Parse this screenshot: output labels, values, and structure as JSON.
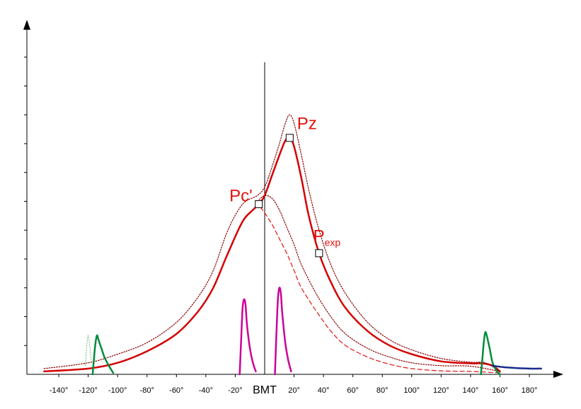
{
  "chart_data": {
    "type": "line",
    "title": "",
    "xlabel": "",
    "ylabel": "",
    "xlim": [
      -150,
      190
    ],
    "ylim": [
      0,
      12
    ],
    "x_ticks": [
      -140,
      -120,
      -100,
      -80,
      -60,
      -40,
      -20,
      20,
      40,
      60,
      80,
      100,
      120,
      140,
      160,
      180
    ],
    "x_tick_labels": [
      "-140°",
      "-120°",
      "-100°",
      "-80°",
      "-60°",
      "-40°",
      "-20°",
      "20°",
      "40°",
      "60°",
      "80°",
      "100°",
      "120°",
      "140°",
      "160°",
      "180°"
    ],
    "y_tick_count": 12,
    "center_label": "BMT",
    "center_x": 0,
    "annotations": [
      {
        "text": "Pz",
        "x": 22,
        "y": 8.5
      },
      {
        "text": "Pc'",
        "x": -24,
        "y": 6.0
      },
      {
        "text": "P",
        "sub": "exp",
        "x": 33,
        "y": 4.6
      }
    ],
    "markers": [
      {
        "name": "Pc'",
        "x": -4,
        "y": 5.9
      },
      {
        "name": "Pz",
        "x": 17,
        "y": 8.2
      },
      {
        "name": "Pexp",
        "x": 37,
        "y": 4.2
      }
    ],
    "series": [
      {
        "color": "#d40000",
        "style": "solid",
        "width": 2.5,
        "points": [
          [
            -150,
            0.1
          ],
          [
            -120,
            0.2
          ],
          [
            -100,
            0.4
          ],
          [
            -80,
            0.8
          ],
          [
            -60,
            1.4
          ],
          [
            -45,
            2.2
          ],
          [
            -35,
            3.0
          ],
          [
            -25,
            4.2
          ],
          [
            -15,
            5.3
          ],
          [
            -8,
            5.7
          ],
          [
            -4,
            5.9
          ],
          [
            0,
            6.2
          ],
          [
            5,
            6.9
          ],
          [
            10,
            7.6
          ],
          [
            14,
            8.1
          ],
          [
            17,
            8.2
          ],
          [
            20,
            7.9
          ],
          [
            25,
            6.8
          ],
          [
            30,
            5.5
          ],
          [
            37,
            4.2
          ],
          [
            45,
            3.2
          ],
          [
            55,
            2.3
          ],
          [
            70,
            1.5
          ],
          [
            85,
            1.0
          ],
          [
            100,
            0.7
          ],
          [
            120,
            0.45
          ],
          [
            140,
            0.38
          ],
          [
            148,
            0.38
          ],
          [
            155,
            0.3
          ],
          [
            160,
            0.1
          ]
        ]
      },
      {
        "color": "#8b0000",
        "style": "dotted",
        "width": 1.2,
        "points": [
          [
            -150,
            0.2
          ],
          [
            -120,
            0.4
          ],
          [
            -100,
            0.7
          ],
          [
            -80,
            1.1
          ],
          [
            -60,
            1.8
          ],
          [
            -45,
            2.7
          ],
          [
            -35,
            3.6
          ],
          [
            -25,
            5.0
          ],
          [
            -15,
            5.9
          ],
          [
            -5,
            6.2
          ],
          [
            0,
            6.5
          ],
          [
            5,
            7.2
          ],
          [
            10,
            8.0
          ],
          [
            14,
            8.7
          ],
          [
            17,
            9.0
          ],
          [
            20,
            8.7
          ],
          [
            25,
            7.6
          ],
          [
            30,
            6.4
          ],
          [
            37,
            5.0
          ],
          [
            45,
            3.8
          ],
          [
            55,
            2.8
          ],
          [
            70,
            1.8
          ],
          [
            85,
            1.2
          ],
          [
            100,
            0.85
          ],
          [
            120,
            0.55
          ],
          [
            140,
            0.42
          ],
          [
            150,
            0.4
          ],
          [
            160,
            0.1
          ]
        ]
      },
      {
        "color": "#8b0000",
        "style": "dotted",
        "width": 1.2,
        "points": [
          [
            -5,
            6.0
          ],
          [
            0,
            6.2
          ],
          [
            5,
            6.1
          ],
          [
            10,
            5.7
          ],
          [
            15,
            5.1
          ],
          [
            20,
            4.5
          ],
          [
            25,
            3.8
          ],
          [
            35,
            2.8
          ],
          [
            45,
            2.0
          ],
          [
            55,
            1.4
          ],
          [
            70,
            0.9
          ],
          [
            85,
            0.6
          ],
          [
            100,
            0.4
          ],
          [
            120,
            0.3
          ],
          [
            140,
            0.28
          ],
          [
            160,
            0.1
          ]
        ]
      },
      {
        "color": "#e3120b",
        "style": "dashed",
        "width": 1.2,
        "points": [
          [
            -3,
            5.8
          ],
          [
            0,
            5.6
          ],
          [
            5,
            5.2
          ],
          [
            10,
            4.7
          ],
          [
            15,
            4.2
          ],
          [
            20,
            3.6
          ],
          [
            25,
            3.0
          ],
          [
            35,
            2.2
          ],
          [
            45,
            1.5
          ],
          [
            55,
            1.0
          ],
          [
            70,
            0.6
          ],
          [
            85,
            0.35
          ],
          [
            100,
            0.2
          ],
          [
            120,
            0.12
          ],
          [
            140,
            0.1
          ],
          [
            160,
            0.05
          ]
        ]
      },
      {
        "color": "#008c3a",
        "style": "solid",
        "width": 2.5,
        "points": [
          [
            -117,
            0
          ],
          [
            -116,
            0.6
          ],
          [
            -115,
            1.1
          ],
          [
            -114,
            1.35
          ],
          [
            -113,
            1.2
          ],
          [
            -111,
            0.9
          ],
          [
            -109,
            0.6
          ],
          [
            -106,
            0.3
          ],
          [
            -103,
            0.05
          ]
        ]
      },
      {
        "color": "#7fbf7f",
        "style": "dotted",
        "width": 1,
        "points": [
          [
            -122,
            0.3
          ],
          [
            -121,
            1.0
          ],
          [
            -120,
            1.35
          ],
          [
            -119,
            1.0
          ],
          [
            -118,
            0.5
          ]
        ]
      },
      {
        "color": "#008c3a",
        "style": "solid",
        "width": 2.5,
        "points": [
          [
            147,
            0
          ],
          [
            148,
            0.5
          ],
          [
            149,
            1.1
          ],
          [
            150,
            1.45
          ],
          [
            151,
            1.35
          ],
          [
            153,
            0.9
          ],
          [
            155,
            0.4
          ],
          [
            158,
            0.1
          ],
          [
            160,
            0
          ]
        ]
      },
      {
        "color": "#cc0099",
        "style": "solid",
        "width": 2.5,
        "points": [
          [
            -17,
            0
          ],
          [
            -16,
            1.2
          ],
          [
            -15,
            2.3
          ],
          [
            -14,
            2.6
          ],
          [
            -13,
            2.4
          ],
          [
            -12,
            1.7
          ],
          [
            -10,
            0.9
          ],
          [
            -8,
            0.4
          ],
          [
            -6,
            0.1
          ]
        ]
      },
      {
        "color": "#cc0099",
        "style": "solid",
        "width": 2.5,
        "points": [
          [
            7,
            0
          ],
          [
            8,
            1.4
          ],
          [
            9,
            2.6
          ],
          [
            10,
            3.0
          ],
          [
            11,
            2.8
          ],
          [
            12,
            2.1
          ],
          [
            14,
            1.1
          ],
          [
            16,
            0.5
          ],
          [
            18,
            0.1
          ]
        ]
      },
      {
        "color": "#1a2b8c",
        "style": "solid",
        "width": 2.5,
        "points": [
          [
            155,
            0.3
          ],
          [
            162,
            0.25
          ],
          [
            170,
            0.22
          ],
          [
            180,
            0.2
          ],
          [
            188,
            0.2
          ]
        ]
      }
    ]
  }
}
